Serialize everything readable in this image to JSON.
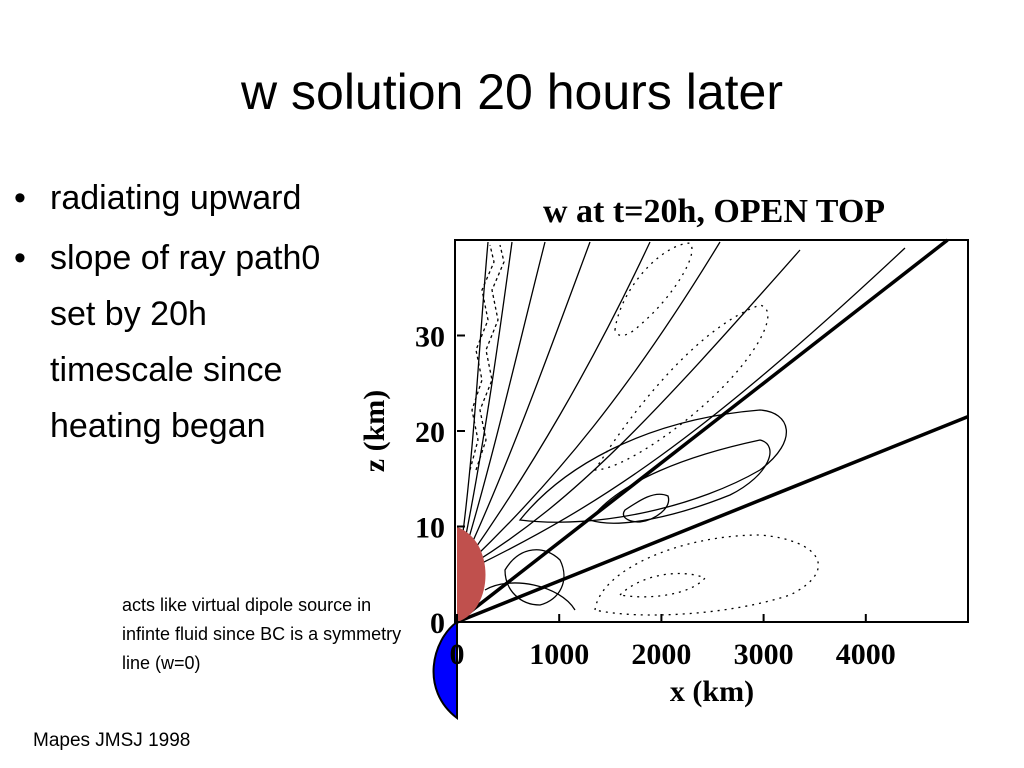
{
  "slide": {
    "title": "w solution 20 hours later",
    "bullets": [
      {
        "text": "radiating upward"
      },
      {
        "text": "slope of ray path0 set by 20h timescale since heating began"
      }
    ],
    "note": "acts like virtual dipole source in infinte fluid since BC is a symmetry line (w=0)",
    "credit": "Mapes JMSJ 1998"
  },
  "colors": {
    "heating_region": "#c0504d",
    "virtual_source": "#0000ff",
    "contour_line": "#000000"
  },
  "chart_data": {
    "type": "contour",
    "title": "w at t=20h, OPEN TOP",
    "xlabel": "x (km)",
    "ylabel": "z (km)",
    "xlim": [
      0,
      5000
    ],
    "ylim": [
      0,
      40
    ],
    "xticks": [
      0,
      1000,
      2000,
      3000,
      4000
    ],
    "xtick_labels": [
      "0",
      "1000",
      "2000",
      "3000",
      "4000"
    ],
    "yticks": [
      0,
      10,
      20,
      30
    ],
    "ytick_labels": [
      "0",
      "10",
      "20",
      "30"
    ],
    "contour_style": {
      "positive": "solid",
      "negative": "dotted"
    },
    "ray_paths": [
      {
        "x": [
          0,
          4800
        ],
        "z": [
          0,
          40
        ]
      },
      {
        "x": [
          0,
          5000
        ],
        "z": [
          0,
          21.5
        ]
      }
    ],
    "heating_region": {
      "x_max": 300,
      "z_max": 10
    },
    "virtual_image_source": {
      "x_max": 300,
      "z_min": -10
    }
  }
}
